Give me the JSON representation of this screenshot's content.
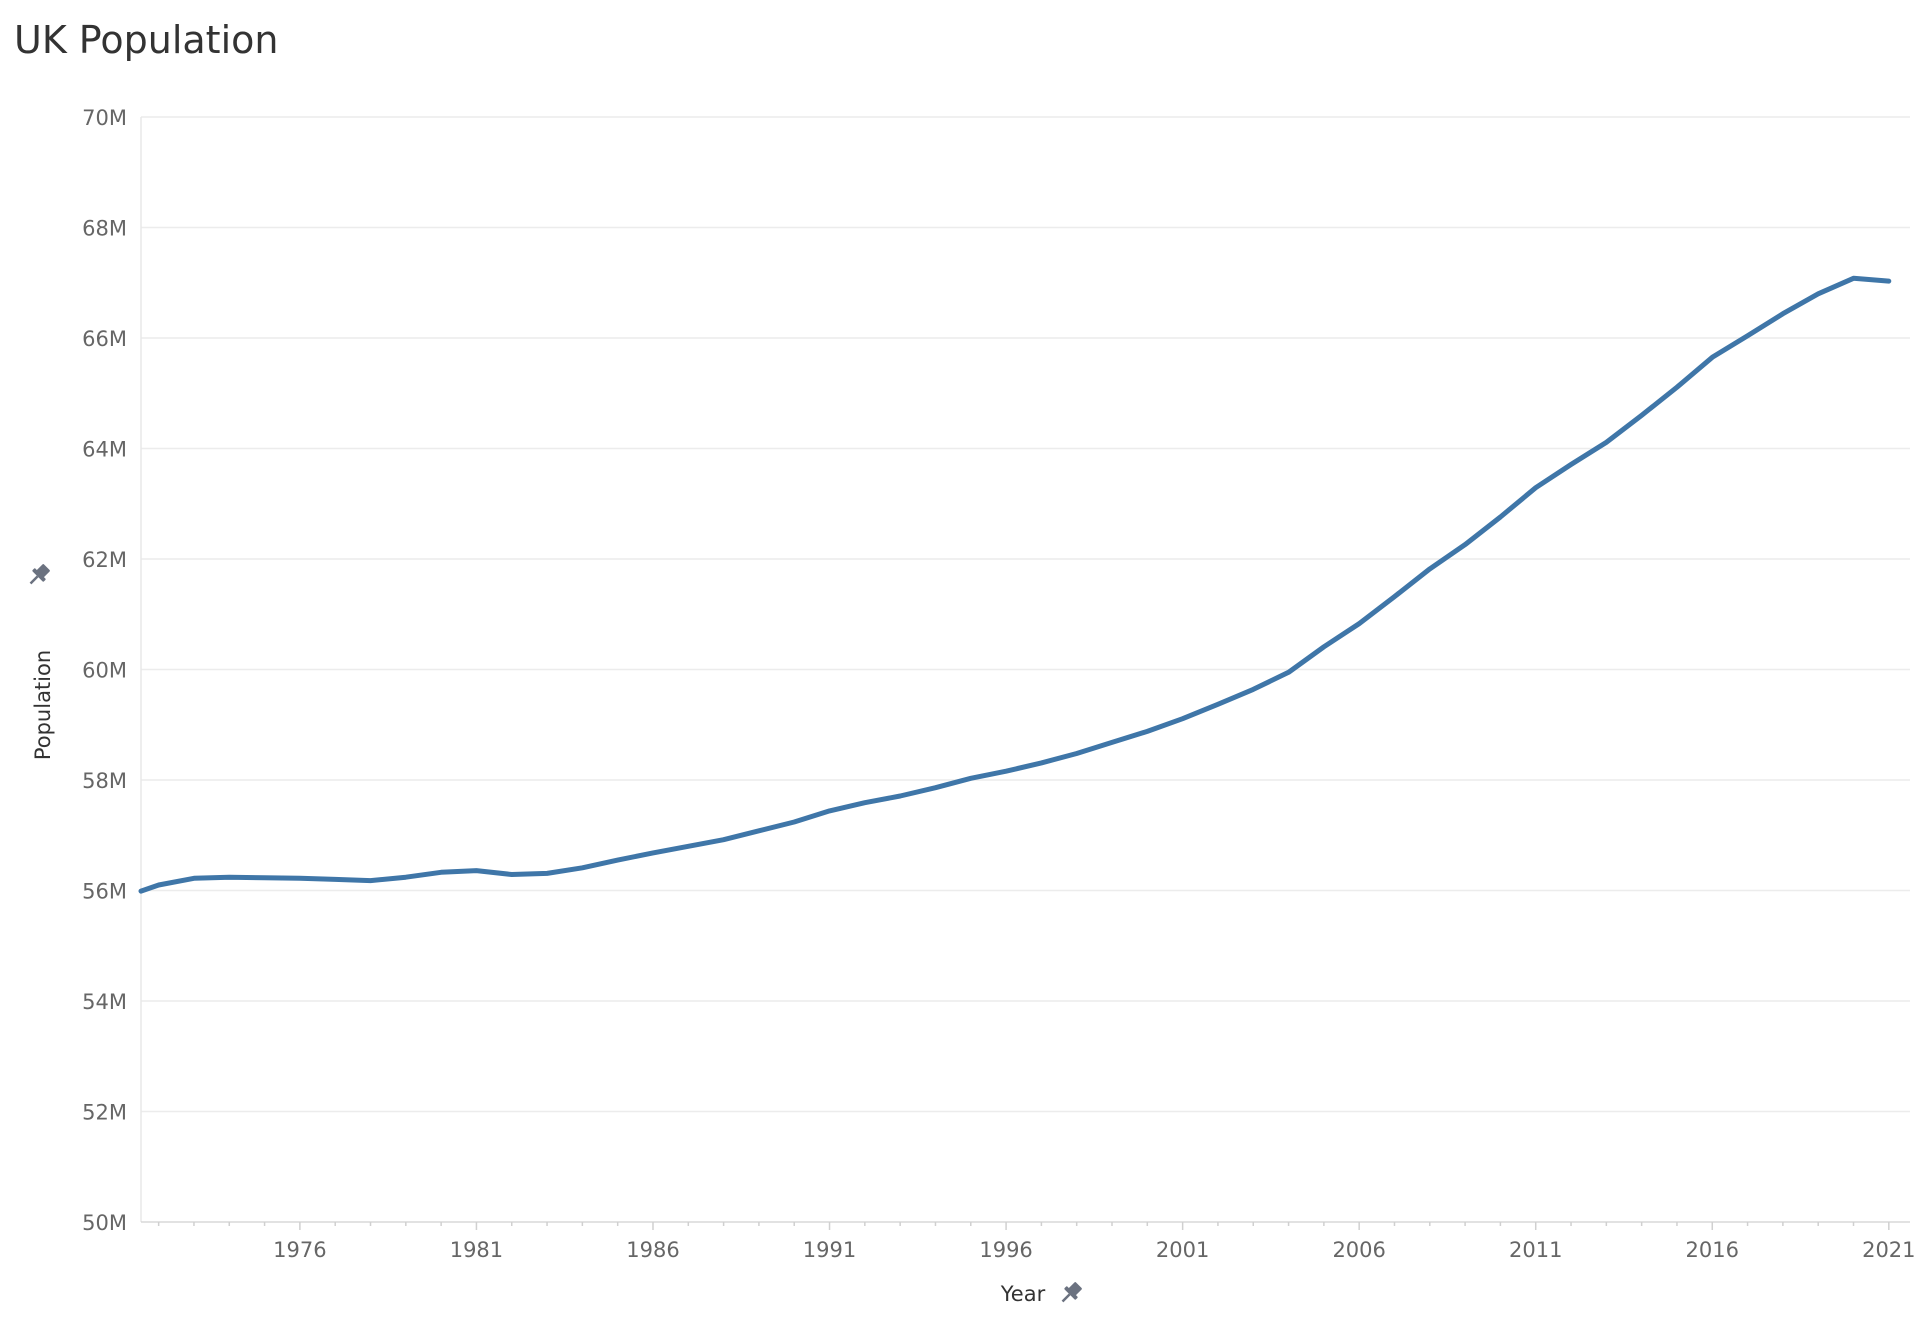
{
  "chart_data": {
    "type": "line",
    "title": "UK Population",
    "xlabel": "Year",
    "ylabel": "Population",
    "xlim": [
      1971.5,
      2021.6
    ],
    "ylim": [
      50,
      70
    ],
    "y_unit": "M",
    "y_ticks": [
      50,
      52,
      54,
      56,
      58,
      60,
      62,
      64,
      66,
      68,
      70
    ],
    "y_tick_labels": [
      "50M",
      "52M",
      "54M",
      "56M",
      "58M",
      "60M",
      "62M",
      "64M",
      "66M",
      "68M",
      "70M"
    ],
    "x_ticks": [
      1976,
      1981,
      1986,
      1991,
      1996,
      2001,
      2006,
      2011,
      2016,
      2021
    ],
    "x_tick_labels": [
      "1976",
      "1981",
      "1986",
      "1991",
      "1996",
      "2001",
      "2006",
      "2011",
      "2016",
      "2021"
    ],
    "grid": true,
    "line_color": "#3F76A8",
    "series": [
      {
        "x": [
          1971.5,
          1972,
          1973,
          1974,
          1975,
          1976,
          1977,
          1978,
          1979,
          1980,
          1981,
          1982,
          1983,
          1984,
          1985,
          1986,
          1987,
          1988,
          1989,
          1990,
          1991,
          1992,
          1993,
          1994,
          1995,
          1996,
          1997,
          1998,
          1999,
          2000,
          2001,
          2002,
          2003,
          2004,
          2005,
          2006,
          2007,
          2008,
          2009,
          2010,
          2011,
          2012,
          2013,
          2014,
          2015,
          2016,
          2017,
          2018,
          2019,
          2020,
          2021
        ],
        "y": [
          55.99,
          56.1,
          56.22,
          56.24,
          56.23,
          56.22,
          56.2,
          56.18,
          56.24,
          56.33,
          56.36,
          56.29,
          56.31,
          56.41,
          56.55,
          56.68,
          56.8,
          56.92,
          57.08,
          57.24,
          57.44,
          57.59,
          57.71,
          57.86,
          58.03,
          58.16,
          58.31,
          58.48,
          58.68,
          58.88,
          59.11,
          59.37,
          59.64,
          59.95,
          60.41,
          60.83,
          61.32,
          61.82,
          62.26,
          62.76,
          63.29,
          63.71,
          64.11,
          64.6,
          65.11,
          65.65,
          66.04,
          66.44,
          66.8,
          67.08,
          67.03
        ]
      }
    ]
  }
}
